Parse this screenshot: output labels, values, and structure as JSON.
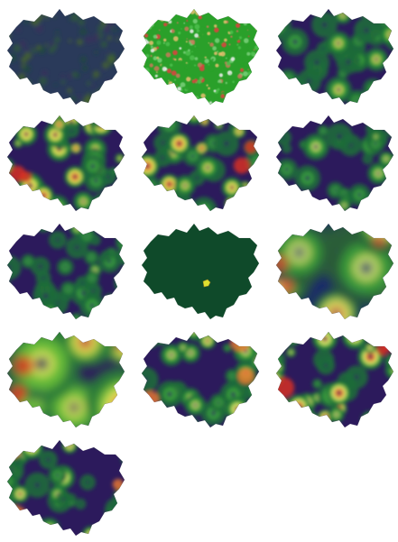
{
  "figure": {
    "panels": [
      {
        "id": "p1",
        "style": "dark-mixed",
        "colors": [
          "#2a3a5a",
          "#1f4a3a",
          "#2f5c38",
          "#3a2f5c",
          "#4a6a2a"
        ]
      },
      {
        "id": "p2",
        "style": "landcover",
        "colors": [
          "#2aa02a",
          "#4cc04c",
          "#7ad07a",
          "#e8c070",
          "#c87a5a",
          "#e04040",
          "#f0f0f0"
        ]
      },
      {
        "id": "p3",
        "style": "distance-field",
        "colors": [
          "#2c1a5c",
          "#1e6a3a",
          "#3aa03a",
          "#f0f060"
        ]
      },
      {
        "id": "p4",
        "style": "distance-field",
        "colors": [
          "#2c1a5c",
          "#1e6a3a",
          "#3aa03a",
          "#f0f060",
          "#f07a30",
          "#e03020"
        ]
      },
      {
        "id": "p5",
        "style": "distance-field",
        "colors": [
          "#2c1a5c",
          "#1e6a3a",
          "#3aa03a",
          "#f0f060",
          "#f07a30",
          "#e03020"
        ]
      },
      {
        "id": "p6",
        "style": "distance-field",
        "colors": [
          "#2c1a5c",
          "#1e6a3a",
          "#3aa03a",
          "#e0f070"
        ]
      },
      {
        "id": "p7",
        "style": "distance-field",
        "colors": [
          "#2c1a5c",
          "#1e6a3a",
          "#3aa03a",
          "#e0f070"
        ]
      },
      {
        "id": "p8",
        "style": "solid-with-spot",
        "colors": [
          "#0f4a2a",
          "#e0e030"
        ]
      },
      {
        "id": "p9",
        "style": "wide-field",
        "colors": [
          "#1a2a6a",
          "#2a5a3a",
          "#3aa03a",
          "#e0f070",
          "#f0a040",
          "#e04030"
        ]
      },
      {
        "id": "p10",
        "style": "wide-field",
        "colors": [
          "#2c1a5c",
          "#2a7a3a",
          "#6ac03a",
          "#e8f060",
          "#f07a30",
          "#e03020"
        ]
      },
      {
        "id": "p11",
        "style": "distance-field",
        "colors": [
          "#2c1a5c",
          "#1e6a3a",
          "#3aa03a",
          "#e0f070",
          "#f07a30"
        ]
      },
      {
        "id": "p12",
        "style": "distance-field",
        "colors": [
          "#2c1a5c",
          "#1e6a3a",
          "#3aa03a",
          "#e0f070",
          "#f07a30",
          "#e03020"
        ]
      },
      {
        "id": "p13",
        "style": "distance-field",
        "colors": [
          "#2c1a5c",
          "#1e6a3a",
          "#3aa03a",
          "#e0f070",
          "#f07a30"
        ]
      }
    ]
  }
}
